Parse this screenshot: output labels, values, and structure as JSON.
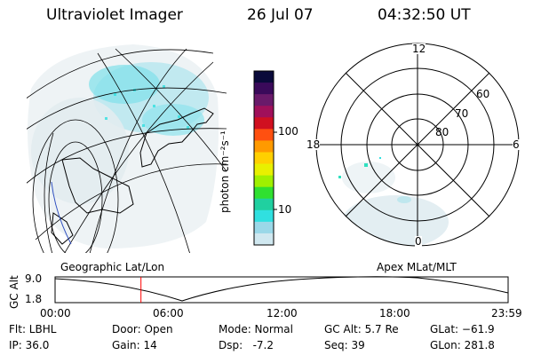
{
  "header": {
    "title": "Ultraviolet Imager",
    "date": "26 Jul 07",
    "time": "04:32:50 UT"
  },
  "colorbar": {
    "label": "photon cm⁻²s⁻¹",
    "ticks": [
      "100",
      "10"
    ],
    "colors": [
      "#0a0a3a",
      "#3a0a5a",
      "#6a1a6a",
      "#a0105a",
      "#d01020",
      "#ff5010",
      "#ff9a00",
      "#ffd000",
      "#e8f000",
      "#a0f000",
      "#30e030",
      "#20d0a0",
      "#30e0e0",
      "#9ad8e8",
      "#d0e8f0"
    ]
  },
  "polar": {
    "mlt_labels": [
      "12",
      "18",
      "6",
      "0"
    ],
    "lat_labels": [
      "60",
      "70",
      "80"
    ]
  },
  "left_map": {
    "caption": "Geographic Lat/Lon"
  },
  "right_map": {
    "caption": "Apex MLat/MLT"
  },
  "altitude_plot": {
    "ylabel": "GC Alt",
    "yticks": [
      "9.0",
      "1.8"
    ],
    "xticks": [
      "00:00",
      "06:00",
      "12:00",
      "18:00",
      "23:59"
    ],
    "cursor_hour": 4.55,
    "marker_color": "#ff0000"
  },
  "status": {
    "filter": "Flt: LBHL",
    "ip": "IP: 36.0",
    "door": "Door: Open",
    "gain": "Gain: 14",
    "mode": "Mode: Normal",
    "dsp": "Dsp:   -7.2",
    "gc_alt": "GC Alt: 5.7 Re",
    "seq": "Seq: 39",
    "glat": "GLat: −61.9",
    "glon": "GLon: 281.8"
  }
}
